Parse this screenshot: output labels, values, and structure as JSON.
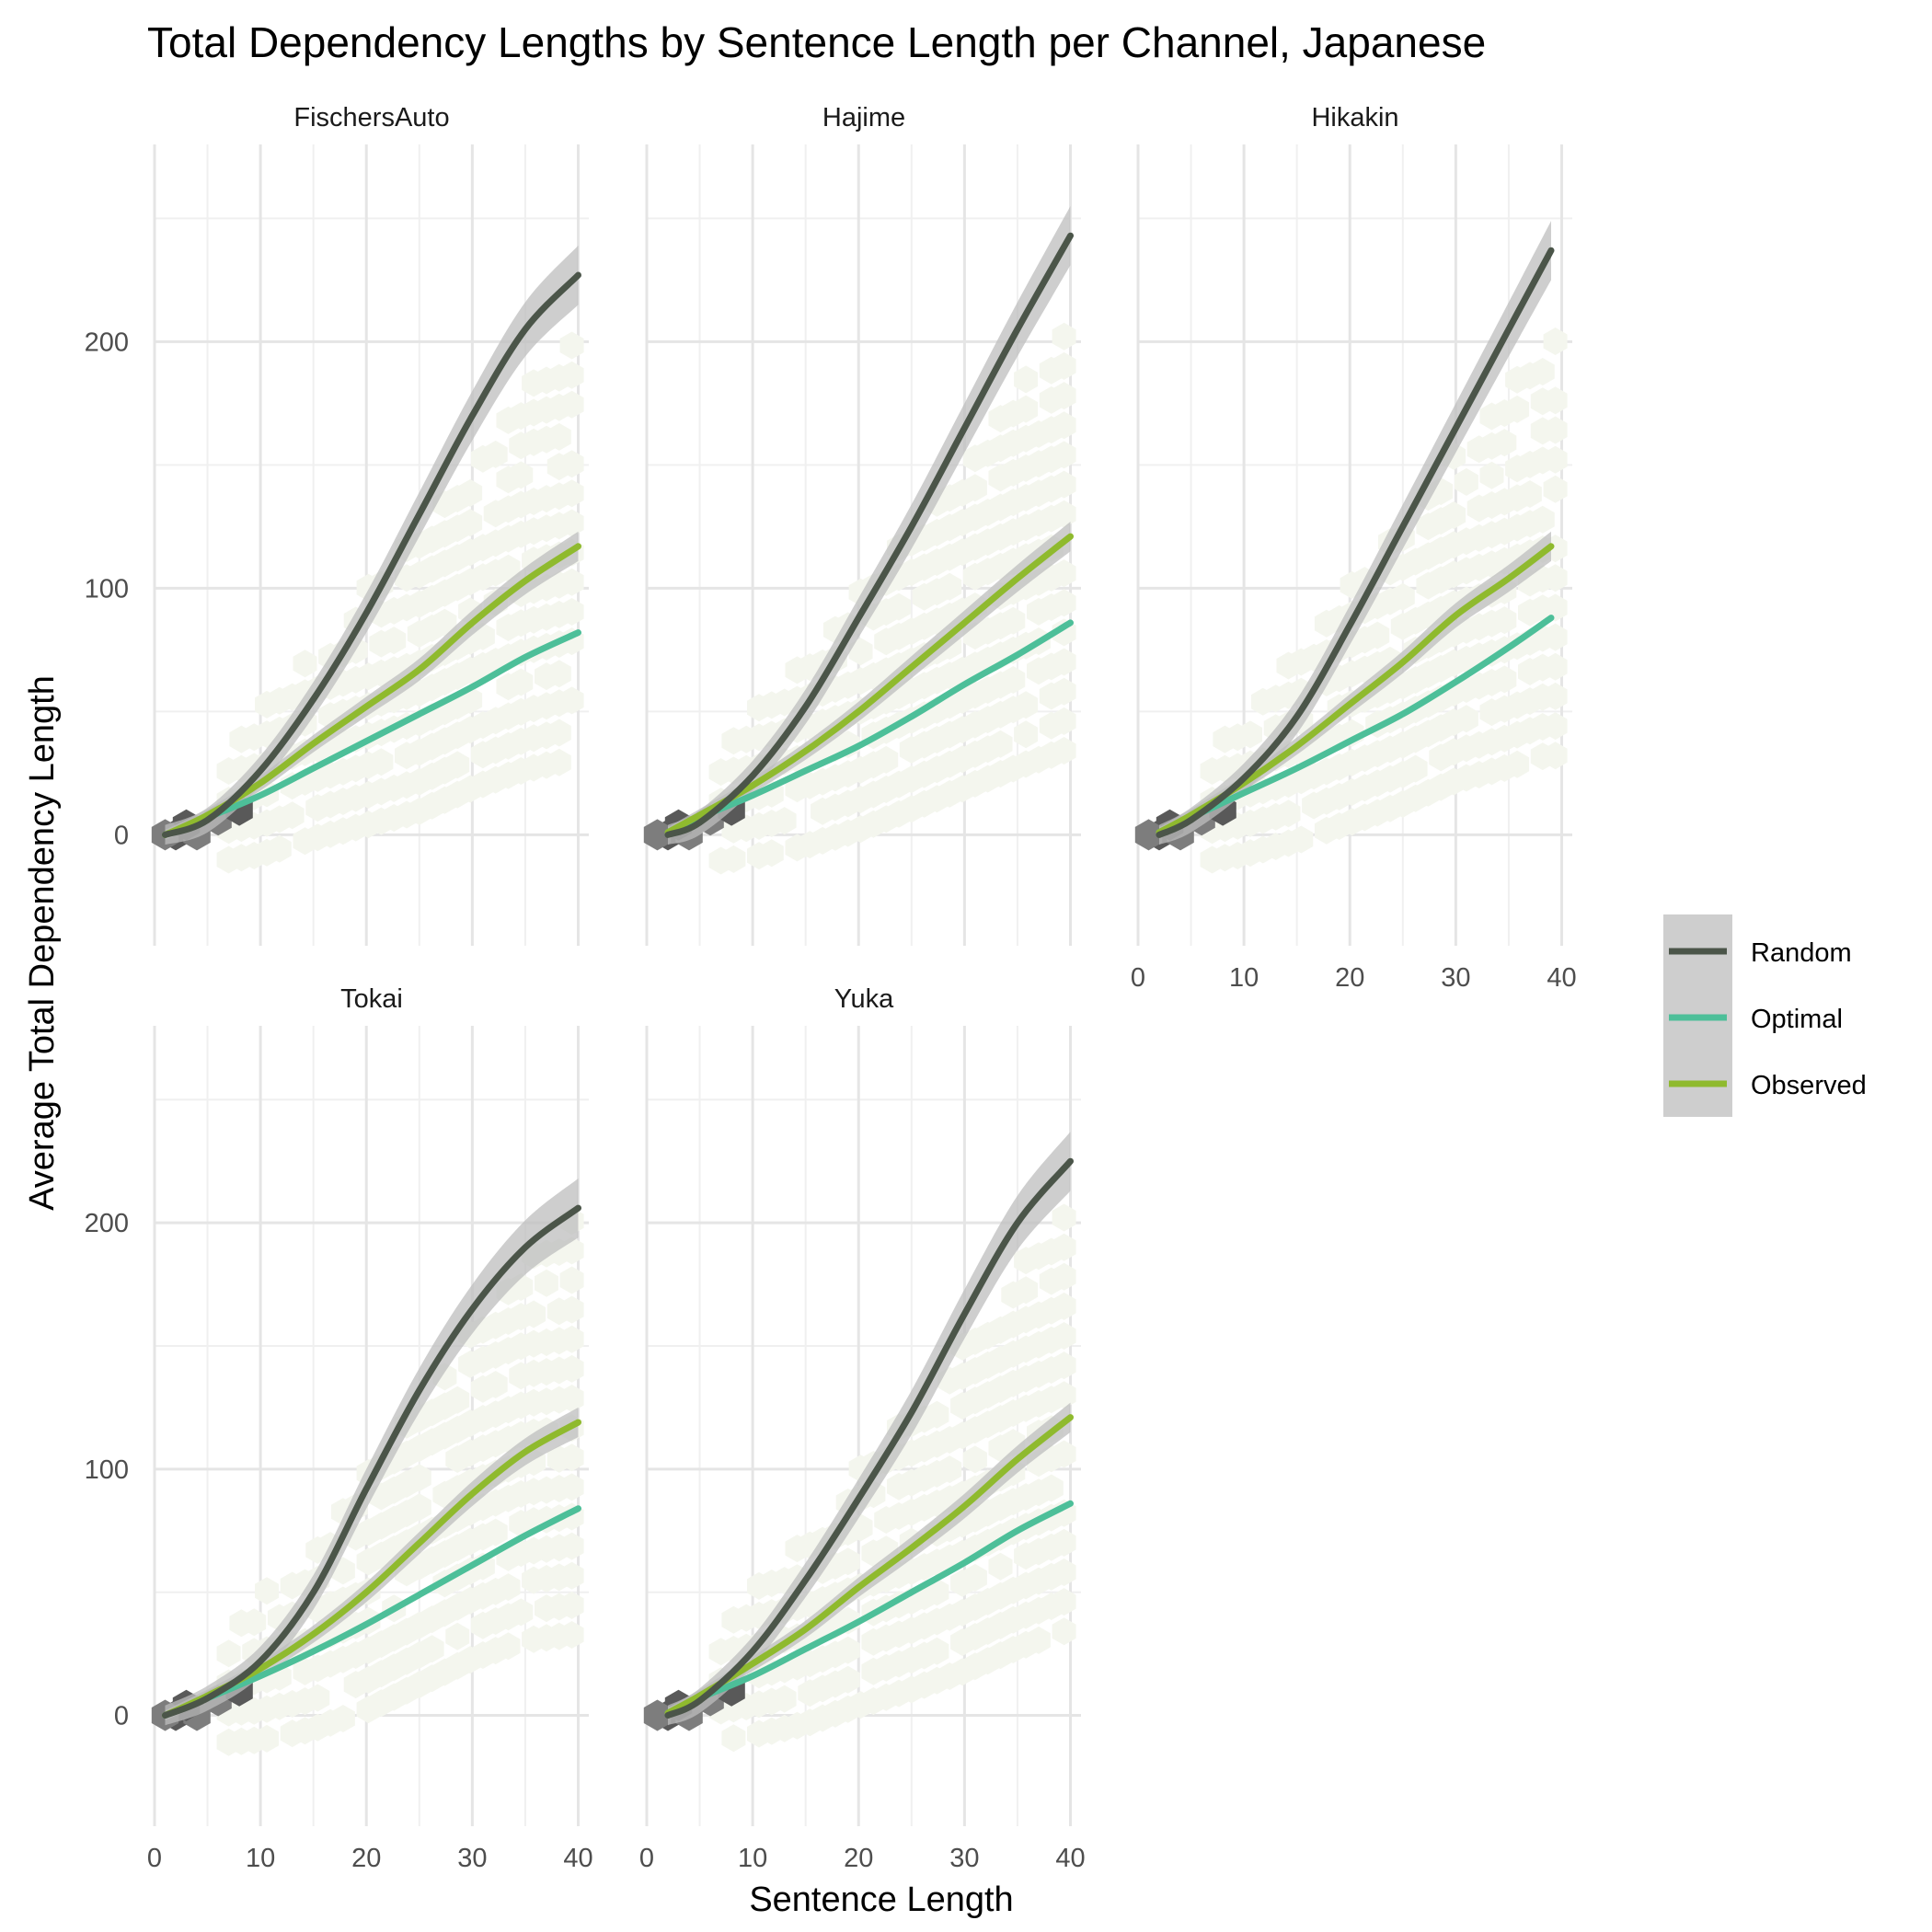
{
  "chart_data": {
    "type": "line",
    "title": "Total Dependency Lengths by Sentence Length per Channel, Japanese",
    "xlabel": "Sentence Length",
    "ylabel": "Average Total Dependency Length",
    "xlim": [
      0,
      41
    ],
    "ylim": [
      -45,
      280
    ],
    "x_ticks": [
      "0",
      "10",
      "20",
      "30",
      "40"
    ],
    "y_ticks": [
      "0",
      "100",
      "200"
    ],
    "grid": true,
    "legend_position": "right",
    "series_colors": {
      "Random": "#4b5549",
      "Optimal": "#4dbf99",
      "Observed": "#8fba2e"
    },
    "ribbon_color": "#bdbdbd",
    "hex_colors": [
      "#f4f6ee",
      "#7d7d7d",
      "#595959"
    ],
    "legend": [
      {
        "label": "Random",
        "color": "#4b5549"
      },
      {
        "label": "Optimal",
        "color": "#4dbf99"
      },
      {
        "label": "Observed",
        "color": "#8fba2e"
      }
    ],
    "panels": [
      {
        "name": "FischersAuto",
        "series": [
          {
            "name": "Random",
            "x": [
              1,
              5,
              10,
              15,
              20,
              25,
              30,
              35,
              40
            ],
            "y": [
              0,
              6,
              26,
              55,
              90,
              130,
              170,
              205,
              227
            ]
          },
          {
            "name": "Optimal",
            "x": [
              1,
              5,
              10,
              15,
              20,
              25,
              30,
              35,
              40
            ],
            "y": [
              0,
              7,
              16,
              27,
              38,
              49,
              60,
              72,
              82
            ]
          },
          {
            "name": "Observed",
            "x": [
              1,
              5,
              10,
              15,
              20,
              25,
              30,
              35,
              40
            ],
            "y": [
              0,
              8,
              21,
              37,
              52,
              67,
              86,
              103,
              117
            ]
          }
        ]
      },
      {
        "name": "Hajime",
        "series": [
          {
            "name": "Random",
            "x": [
              2,
              5,
              10,
              15,
              20,
              25,
              30,
              35,
              40
            ],
            "y": [
              0,
              5,
              24,
              52,
              88,
              125,
              165,
              205,
              243
            ]
          },
          {
            "name": "Optimal",
            "x": [
              2,
              5,
              10,
              15,
              20,
              25,
              30,
              35,
              40
            ],
            "y": [
              1,
              7,
              16,
              26,
              36,
              48,
              61,
              73,
              86
            ]
          },
          {
            "name": "Observed",
            "x": [
              2,
              5,
              10,
              15,
              20,
              25,
              30,
              35,
              40
            ],
            "y": [
              1,
              8,
              20,
              34,
              50,
              68,
              86,
              104,
              121
            ]
          }
        ]
      },
      {
        "name": "Hikakin",
        "series": [
          {
            "name": "Random",
            "x": [
              2,
              5,
              10,
              15,
              20,
              25,
              30,
              35,
              39
            ],
            "y": [
              0,
              6,
              23,
              48,
              85,
              125,
              165,
              205,
              237
            ]
          },
          {
            "name": "Optimal",
            "x": [
              2,
              5,
              10,
              15,
              20,
              25,
              30,
              35,
              39
            ],
            "y": [
              1,
              7,
              17,
              27,
              38,
              49,
              62,
              76,
              88
            ]
          },
          {
            "name": "Observed",
            "x": [
              2,
              5,
              10,
              15,
              20,
              25,
              30,
              35,
              39
            ],
            "y": [
              1,
              8,
              21,
              36,
              53,
              70,
              89,
              104,
              117
            ]
          }
        ]
      },
      {
        "name": "Tokai",
        "series": [
          {
            "name": "Random",
            "x": [
              1,
              5,
              10,
              15,
              20,
              25,
              30,
              35,
              40
            ],
            "y": [
              0,
              7,
              22,
              50,
              92,
              132,
              165,
              190,
              206
            ]
          },
          {
            "name": "Optimal",
            "x": [
              1,
              5,
              10,
              15,
              20,
              25,
              30,
              35,
              40
            ],
            "y": [
              0,
              7,
              16,
              26,
              37,
              49,
              61,
              73,
              84
            ]
          },
          {
            "name": "Observed",
            "x": [
              1,
              5,
              10,
              15,
              20,
              25,
              30,
              35,
              40
            ],
            "y": [
              0,
              8,
              19,
              33,
              50,
              70,
              90,
              107,
              119
            ]
          }
        ]
      },
      {
        "name": "Yuka",
        "series": [
          {
            "name": "Random",
            "x": [
              2,
              5,
              10,
              15,
              20,
              25,
              30,
              35,
              40
            ],
            "y": [
              0,
              6,
              26,
              55,
              88,
              123,
              163,
              200,
              225
            ]
          },
          {
            "name": "Optimal",
            "x": [
              2,
              5,
              10,
              15,
              20,
              25,
              30,
              35,
              40
            ],
            "y": [
              1,
              7,
              16,
              27,
              38,
              50,
              62,
              75,
              86
            ]
          },
          {
            "name": "Observed",
            "x": [
              2,
              5,
              10,
              15,
              20,
              25,
              30,
              35,
              40
            ],
            "y": [
              1,
              8,
              21,
              35,
              52,
              68,
              85,
              104,
              121
            ]
          }
        ]
      }
    ]
  }
}
